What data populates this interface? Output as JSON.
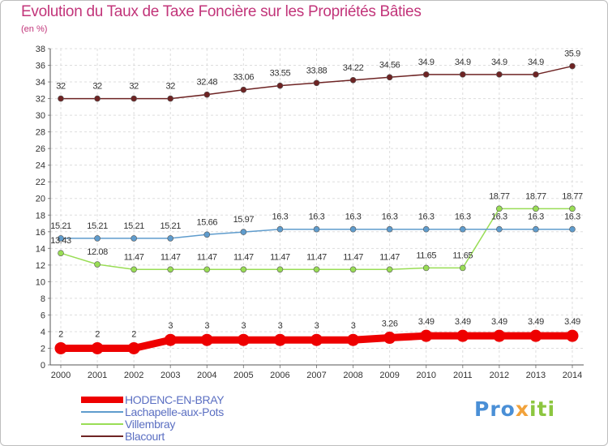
{
  "chart_data": {
    "type": "line",
    "title": "Evolution du Taux de Taxe Foncière sur les Propriétés Bâties",
    "ylabel": "(en %)",
    "xlabel": "",
    "ylim": [
      0,
      38
    ],
    "ytick_step": 2,
    "grid": true,
    "legend_position": "bottom-left",
    "categories": [
      "2000",
      "2001",
      "2002",
      "2003",
      "2004",
      "2005",
      "2006",
      "2007",
      "2008",
      "2009",
      "2010",
      "2011",
      "2012",
      "2013",
      "2014"
    ],
    "series": [
      {
        "name": "HODENC-EN-BRAY",
        "color": "#ee0000",
        "values": [
          2,
          2,
          2,
          3,
          3,
          3,
          3,
          3,
          3,
          3.26,
          3.49,
          3.49,
          3.49,
          3.49,
          3.49
        ],
        "labels": [
          "2",
          "2",
          "2",
          "3",
          "3",
          "3",
          "3",
          "3",
          "3",
          "3.26",
          "3.49",
          "3.49",
          "3.49",
          "3.49",
          "3.49"
        ]
      },
      {
        "name": "Lachapelle-aux-Pots",
        "color": "#5f9ccd",
        "values": [
          15.21,
          15.21,
          15.21,
          15.21,
          15.66,
          15.97,
          16.3,
          16.3,
          16.3,
          16.3,
          16.3,
          16.3,
          16.3,
          16.3,
          16.3
        ],
        "labels": [
          "15.21",
          "15.21",
          "15.21",
          "15.21",
          "15.66",
          "15.97",
          "16.3",
          "16.3",
          "16.3",
          "16.3",
          "16.3",
          "16.3",
          "16.3",
          "16.3",
          "16.3"
        ]
      },
      {
        "name": "Villembray",
        "color": "#99dd55",
        "values": [
          13.43,
          12.08,
          11.47,
          11.47,
          11.47,
          11.47,
          11.47,
          11.47,
          11.47,
          11.47,
          11.65,
          11.65,
          18.77,
          18.77,
          18.77
        ],
        "labels": [
          "13.43",
          "12.08",
          "11.47",
          "11.47",
          "11.47",
          "11.47",
          "11.47",
          "11.47",
          "11.47",
          "11.47",
          "11.65",
          "11.65",
          "18.77",
          "18.77",
          "18.77"
        ]
      },
      {
        "name": "Blacourt",
        "color": "#6e2424",
        "values": [
          32,
          32,
          32,
          32,
          32.48,
          33.06,
          33.55,
          33.88,
          34.22,
          34.56,
          34.9,
          34.9,
          34.9,
          34.9,
          35.9
        ],
        "labels": [
          "32",
          "32",
          "32",
          "32",
          "32.48",
          "33.06",
          "33.55",
          "33.88",
          "34.22",
          "34.56",
          "34.9",
          "34.9",
          "34.9",
          "34.9",
          "35.9"
        ]
      }
    ]
  },
  "brand": {
    "parts": [
      "Pro",
      "x",
      "iti"
    ],
    "colors": [
      "#4a8fd6",
      "#f2a23a",
      "#8cc63f"
    ]
  }
}
